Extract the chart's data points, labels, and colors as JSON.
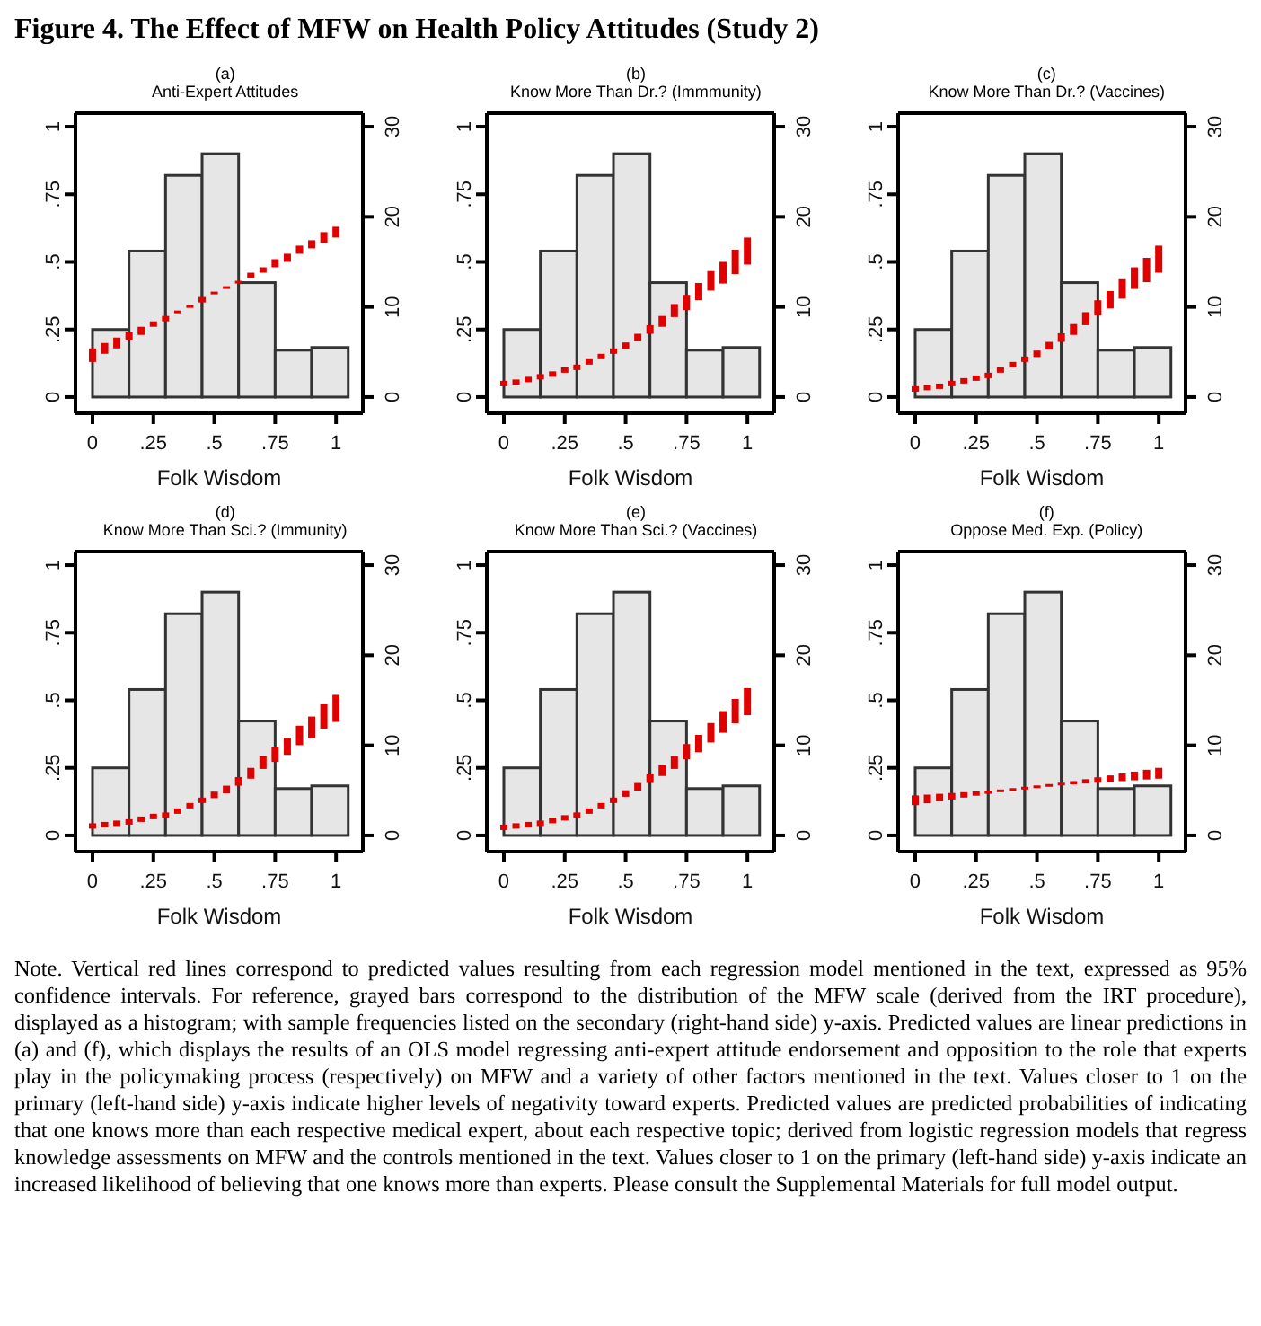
{
  "chart_data": [
    {
      "type": "other",
      "title": "Figure 4. The Effect of MFW on Health Policy Attitudes (Study 2)"
    },
    {
      "type": "histogram",
      "title": "(a)",
      "subtitle": "Anti-Expert Attitudes",
      "xlabel": "Folk Wisdom",
      "xlim": [
        -0.07,
        1.11
      ],
      "xticks": [
        {
          "value": 0,
          "label": "0"
        },
        {
          "value": 0.25,
          "label": ".25"
        },
        {
          "value": 0.5,
          "label": ".5"
        },
        {
          "value": 0.75,
          "label": ".75"
        },
        {
          "value": 1,
          "label": "1"
        }
      ],
      "ylim": [
        -0.06,
        1.05
      ],
      "yticks": [
        {
          "value": 0,
          "label": "0"
        },
        {
          "value": 0.25,
          "label": ".25"
        },
        {
          "value": 0.5,
          "label": ".5"
        },
        {
          "value": 0.75,
          "label": ".75"
        },
        {
          "value": 1,
          "label": "1"
        }
      ],
      "y2lim": [
        -1.8,
        31.5
      ],
      "y2ticks": [
        0,
        10,
        20,
        30
      ],
      "series": [
        {
          "type": "histogram",
          "axis": "y2",
          "color": "#e6e6e6",
          "bins": [
            0,
            0.15,
            0.3,
            0.45,
            0.6,
            0.75,
            0.9,
            1.05
          ],
          "values": [
            7.5,
            16.2,
            24.6,
            27,
            12.7,
            5.2,
            5.5
          ]
        },
        {
          "type": "bar",
          "axis": "y",
          "color": "#e00000",
          "x": [
            0,
            0.05,
            0.1,
            0.15,
            0.2,
            0.25,
            0.3,
            0.35,
            0.4,
            0.45,
            0.5,
            0.55,
            0.6,
            0.65,
            0.7,
            0.75,
            0.8,
            0.85,
            0.9,
            0.95,
            1
          ],
          "base": [
            0.13,
            0.16,
            0.18,
            0.21,
            0.23,
            0.26,
            0.28,
            0.31,
            0.33,
            0.35,
            0.38,
            0.4,
            0.42,
            0.44,
            0.46,
            0.48,
            0.5,
            0.53,
            0.55,
            0.57,
            0.59
          ],
          "values": [
            0.05,
            0.04,
            0.04,
            0.03,
            0.03,
            0.02,
            0.02,
            0.01,
            0.01,
            0.02,
            0.01,
            0.01,
            0.01,
            0.02,
            0.02,
            0.03,
            0.03,
            0.03,
            0.03,
            0.04,
            0.04
          ]
        }
      ]
    },
    {
      "type": "histogram",
      "title": "(b)",
      "subtitle": "Know More Than Dr.? (Immmunity)",
      "xlabel": "Folk Wisdom",
      "xlim": [
        -0.07,
        1.11
      ],
      "xticks": [
        {
          "value": 0,
          "label": "0"
        },
        {
          "value": 0.25,
          "label": ".25"
        },
        {
          "value": 0.5,
          "label": ".5"
        },
        {
          "value": 0.75,
          "label": ".75"
        },
        {
          "value": 1,
          "label": "1"
        }
      ],
      "ylim": [
        -0.06,
        1.05
      ],
      "yticks": [
        {
          "value": 0,
          "label": "0"
        },
        {
          "value": 0.25,
          "label": ".25"
        },
        {
          "value": 0.5,
          "label": ".5"
        },
        {
          "value": 0.75,
          "label": ".75"
        },
        {
          "value": 1,
          "label": "1"
        }
      ],
      "y2lim": [
        -1.8,
        31.5
      ],
      "y2ticks": [
        0,
        10,
        20,
        30
      ],
      "series": [
        {
          "type": "histogram",
          "axis": "y2",
          "color": "#e6e6e6",
          "bins": [
            0,
            0.15,
            0.3,
            0.45,
            0.6,
            0.75,
            0.9,
            1.05
          ],
          "values": [
            7.5,
            16.2,
            24.6,
            27,
            12.7,
            5.2,
            5.5
          ]
        },
        {
          "type": "bar",
          "axis": "y",
          "color": "#e00000",
          "x": [
            0,
            0.05,
            0.1,
            0.15,
            0.2,
            0.25,
            0.3,
            0.35,
            0.4,
            0.45,
            0.5,
            0.55,
            0.6,
            0.65,
            0.7,
            0.75,
            0.8,
            0.85,
            0.9,
            0.95,
            1
          ],
          "base": [
            0.04,
            0.045,
            0.055,
            0.065,
            0.075,
            0.09,
            0.1,
            0.12,
            0.14,
            0.16,
            0.178,
            0.206,
            0.234,
            0.26,
            0.296,
            0.322,
            0.358,
            0.394,
            0.42,
            0.455,
            0.49
          ],
          "values": [
            0.02,
            0.02,
            0.02,
            0.02,
            0.02,
            0.02,
            0.02,
            0.02,
            0.02,
            0.02,
            0.024,
            0.028,
            0.032,
            0.04,
            0.048,
            0.056,
            0.064,
            0.072,
            0.08,
            0.09,
            0.1
          ]
        }
      ]
    },
    {
      "type": "histogram",
      "title": "(c)",
      "subtitle": "Know More Than Dr.? (Vaccines)",
      "xlabel": "Folk Wisdom",
      "xlim": [
        -0.07,
        1.11
      ],
      "xticks": [
        {
          "value": 0,
          "label": "0"
        },
        {
          "value": 0.25,
          "label": ".25"
        },
        {
          "value": 0.5,
          "label": ".5"
        },
        {
          "value": 0.75,
          "label": ".75"
        },
        {
          "value": 1,
          "label": "1"
        }
      ],
      "ylim": [
        -0.06,
        1.05
      ],
      "yticks": [
        {
          "value": 0,
          "label": "0"
        },
        {
          "value": 0.25,
          "label": ".25"
        },
        {
          "value": 0.5,
          "label": ".5"
        },
        {
          "value": 0.75,
          "label": ".75"
        },
        {
          "value": 1,
          "label": "1"
        }
      ],
      "y2lim": [
        -1.8,
        31.5
      ],
      "y2ticks": [
        0,
        10,
        20,
        30
      ],
      "series": [
        {
          "type": "histogram",
          "axis": "y2",
          "color": "#e6e6e6",
          "bins": [
            0,
            0.15,
            0.3,
            0.45,
            0.6,
            0.75,
            0.9,
            1.05
          ],
          "values": [
            7.5,
            16.2,
            24.6,
            27,
            12.7,
            5.2,
            5.5
          ]
        },
        {
          "type": "bar",
          "axis": "y",
          "color": "#e00000",
          "x": [
            0,
            0.05,
            0.1,
            0.15,
            0.2,
            0.25,
            0.3,
            0.35,
            0.4,
            0.45,
            0.5,
            0.55,
            0.6,
            0.65,
            0.7,
            0.75,
            0.8,
            0.85,
            0.9,
            0.95,
            1
          ],
          "base": [
            0.02,
            0.025,
            0.03,
            0.04,
            0.05,
            0.06,
            0.07,
            0.09,
            0.11,
            0.13,
            0.148,
            0.176,
            0.204,
            0.23,
            0.266,
            0.302,
            0.328,
            0.364,
            0.4,
            0.425,
            0.46
          ],
          "values": [
            0.02,
            0.02,
            0.02,
            0.02,
            0.02,
            0.02,
            0.02,
            0.02,
            0.02,
            0.02,
            0.024,
            0.028,
            0.032,
            0.04,
            0.048,
            0.056,
            0.064,
            0.072,
            0.08,
            0.09,
            0.1
          ]
        }
      ]
    },
    {
      "type": "histogram",
      "title": "(d)",
      "subtitle": "Know More Than Sci.? (Immunity)",
      "xlabel": "Folk Wisdom",
      "xlim": [
        -0.07,
        1.11
      ],
      "xticks": [
        {
          "value": 0,
          "label": "0"
        },
        {
          "value": 0.25,
          "label": ".25"
        },
        {
          "value": 0.5,
          "label": ".5"
        },
        {
          "value": 0.75,
          "label": ".75"
        },
        {
          "value": 1,
          "label": "1"
        }
      ],
      "ylim": [
        -0.06,
        1.05
      ],
      "yticks": [
        {
          "value": 0,
          "label": "0"
        },
        {
          "value": 0.25,
          "label": ".25"
        },
        {
          "value": 0.5,
          "label": ".5"
        },
        {
          "value": 0.75,
          "label": ".75"
        },
        {
          "value": 1,
          "label": "1"
        }
      ],
      "y2lim": [
        -1.8,
        31.5
      ],
      "y2ticks": [
        0,
        10,
        20,
        30
      ],
      "series": [
        {
          "type": "histogram",
          "axis": "y2",
          "color": "#e6e6e6",
          "bins": [
            0,
            0.15,
            0.3,
            0.45,
            0.6,
            0.75,
            0.9,
            1.05
          ],
          "values": [
            7.5,
            16.2,
            24.6,
            27,
            12.7,
            5.2,
            5.5
          ]
        },
        {
          "type": "bar",
          "axis": "y",
          "color": "#e00000",
          "x": [
            0,
            0.05,
            0.1,
            0.15,
            0.2,
            0.25,
            0.3,
            0.35,
            0.4,
            0.45,
            0.5,
            0.55,
            0.6,
            0.65,
            0.7,
            0.75,
            0.8,
            0.85,
            0.9,
            0.95,
            1
          ],
          "base": [
            0.025,
            0.03,
            0.035,
            0.04,
            0.05,
            0.06,
            0.065,
            0.08,
            0.1,
            0.12,
            0.138,
            0.156,
            0.184,
            0.21,
            0.246,
            0.272,
            0.298,
            0.334,
            0.36,
            0.395,
            0.42
          ],
          "values": [
            0.02,
            0.02,
            0.02,
            0.02,
            0.02,
            0.02,
            0.02,
            0.02,
            0.02,
            0.02,
            0.024,
            0.028,
            0.032,
            0.04,
            0.048,
            0.056,
            0.064,
            0.072,
            0.08,
            0.09,
            0.1
          ]
        }
      ]
    },
    {
      "type": "histogram",
      "title": "(e)",
      "subtitle": "Know More Than Sci.? (Vaccines)",
      "xlabel": "Folk Wisdom",
      "xlim": [
        -0.07,
        1.11
      ],
      "xticks": [
        {
          "value": 0,
          "label": "0"
        },
        {
          "value": 0.25,
          "label": ".25"
        },
        {
          "value": 0.5,
          "label": ".5"
        },
        {
          "value": 0.75,
          "label": ".75"
        },
        {
          "value": 1,
          "label": "1"
        }
      ],
      "ylim": [
        -0.06,
        1.05
      ],
      "yticks": [
        {
          "value": 0,
          "label": "0"
        },
        {
          "value": 0.25,
          "label": ".25"
        },
        {
          "value": 0.5,
          "label": ".5"
        },
        {
          "value": 0.75,
          "label": ".75"
        },
        {
          "value": 1,
          "label": "1"
        }
      ],
      "y2lim": [
        -1.8,
        31.5
      ],
      "y2ticks": [
        0,
        10,
        20,
        30
      ],
      "series": [
        {
          "type": "histogram",
          "axis": "y2",
          "color": "#e6e6e6",
          "bins": [
            0,
            0.15,
            0.3,
            0.45,
            0.6,
            0.75,
            0.9,
            1.05
          ],
          "values": [
            7.5,
            16.2,
            24.6,
            27,
            12.7,
            5.2,
            5.5
          ]
        },
        {
          "type": "bar",
          "axis": "y",
          "color": "#e00000",
          "x": [
            0,
            0.05,
            0.1,
            0.15,
            0.2,
            0.25,
            0.3,
            0.35,
            0.4,
            0.45,
            0.5,
            0.55,
            0.6,
            0.65,
            0.7,
            0.75,
            0.8,
            0.85,
            0.9,
            0.95,
            1
          ],
          "base": [
            0.02,
            0.025,
            0.03,
            0.035,
            0.045,
            0.055,
            0.065,
            0.08,
            0.1,
            0.12,
            0.143,
            0.166,
            0.194,
            0.22,
            0.246,
            0.282,
            0.308,
            0.344,
            0.38,
            0.415,
            0.445
          ],
          "values": [
            0.02,
            0.02,
            0.02,
            0.02,
            0.02,
            0.02,
            0.02,
            0.02,
            0.02,
            0.02,
            0.024,
            0.028,
            0.032,
            0.04,
            0.048,
            0.056,
            0.064,
            0.072,
            0.08,
            0.09,
            0.1
          ]
        }
      ]
    },
    {
      "type": "histogram",
      "title": "(f)",
      "subtitle": "Oppose Med. Exp. (Policy)",
      "xlabel": "Folk Wisdom",
      "xlim": [
        -0.07,
        1.11
      ],
      "xticks": [
        {
          "value": 0,
          "label": "0"
        },
        {
          "value": 0.25,
          "label": ".25"
        },
        {
          "value": 0.5,
          "label": ".5"
        },
        {
          "value": 0.75,
          "label": ".75"
        },
        {
          "value": 1,
          "label": "1"
        }
      ],
      "ylim": [
        -0.06,
        1.05
      ],
      "yticks": [
        {
          "value": 0,
          "label": "0"
        },
        {
          "value": 0.25,
          "label": ".25"
        },
        {
          "value": 0.5,
          "label": ".5"
        },
        {
          "value": 0.75,
          "label": ".75"
        },
        {
          "value": 1,
          "label": "1"
        }
      ],
      "y2lim": [
        -1.8,
        31.5
      ],
      "y2ticks": [
        0,
        10,
        20,
        30
      ],
      "series": [
        {
          "type": "histogram",
          "axis": "y2",
          "color": "#e6e6e6",
          "bins": [
            0,
            0.15,
            0.3,
            0.45,
            0.6,
            0.75,
            0.9,
            1.05
          ],
          "values": [
            7.5,
            16.2,
            24.6,
            27,
            12.7,
            5.2,
            5.5
          ]
        },
        {
          "type": "bar",
          "axis": "y",
          "color": "#e00000",
          "x": [
            0,
            0.05,
            0.1,
            0.15,
            0.2,
            0.25,
            0.3,
            0.35,
            0.4,
            0.45,
            0.5,
            0.55,
            0.6,
            0.65,
            0.7,
            0.75,
            0.8,
            0.85,
            0.9,
            0.95,
            1
          ],
          "base": [
            0.112,
            0.119,
            0.126,
            0.133,
            0.14,
            0.147,
            0.154,
            0.16,
            0.165,
            0.17,
            0.175,
            0.18,
            0.185,
            0.189,
            0.192,
            0.195,
            0.198,
            0.201,
            0.204,
            0.207,
            0.21
          ],
          "values": [
            0.036,
            0.032,
            0.028,
            0.024,
            0.02,
            0.016,
            0.012,
            0.01,
            0.01,
            0.01,
            0.01,
            0.01,
            0.01,
            0.012,
            0.016,
            0.02,
            0.024,
            0.028,
            0.032,
            0.036,
            0.04
          ]
        }
      ]
    },
    {
      "type": "other",
      "annotations": [
        "Note. Vertical red lines correspond to predicted values resulting from each regression model mentioned in the text, expressed as 95% confidence intervals. For reference, grayed bars correspond to the distribution of the MFW scale (derived from the IRT procedure), displayed as a histogram; with sample frequencies listed on the secondary (right-hand side) y-axis. Predicted values are linear predictions in (a) and (f), which displays the results of an OLS model regressing anti-expert attitude endorsement and opposition to the role that experts play in the policymaking process (respectively) on MFW and a variety of other factors mentioned in the text. Values closer to 1 on the primary (left-hand side) y-axis indicate higher levels of negativity toward experts. Predicted values are predicted probabilities of indicating that one knows more than each respective medical expert, about each respective topic; derived from logistic regression models that regress knowledge assessments on MFW and the controls mentioned in the text. Values closer to 1 on the primary (left-hand side) y-axis indicate an increased likelihood of believing that one knows more than experts. Please consult the Supplemental Materials for full model output."
      ]
    }
  ]
}
